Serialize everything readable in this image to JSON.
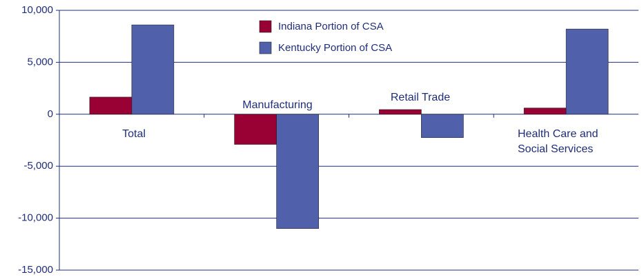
{
  "chart_data": {
    "type": "bar",
    "categories": [
      "Total",
      "Manufacturing",
      "Retail Trade",
      "Health Care and Social Services"
    ],
    "series": [
      {
        "name": "Indiana Portion of CSA",
        "color": "#990033",
        "values": [
          1650,
          -2900,
          450,
          600
        ]
      },
      {
        "name": "Kentucky Portion of CSA",
        "color": "#5060aa",
        "values": [
          8600,
          -11000,
          -2250,
          8200
        ]
      }
    ],
    "ylim": [
      -15000,
      10000
    ],
    "yticks": [
      {
        "value": -15000,
        "label": "-15,000"
      },
      {
        "value": -10000,
        "label": "-10,000"
      },
      {
        "value": -5000,
        "label": "-5,000"
      },
      0,
      {
        "value": 5000,
        "label": "5,000"
      },
      {
        "value": 10000,
        "label": "10,000"
      }
    ],
    "grid": true
  }
}
